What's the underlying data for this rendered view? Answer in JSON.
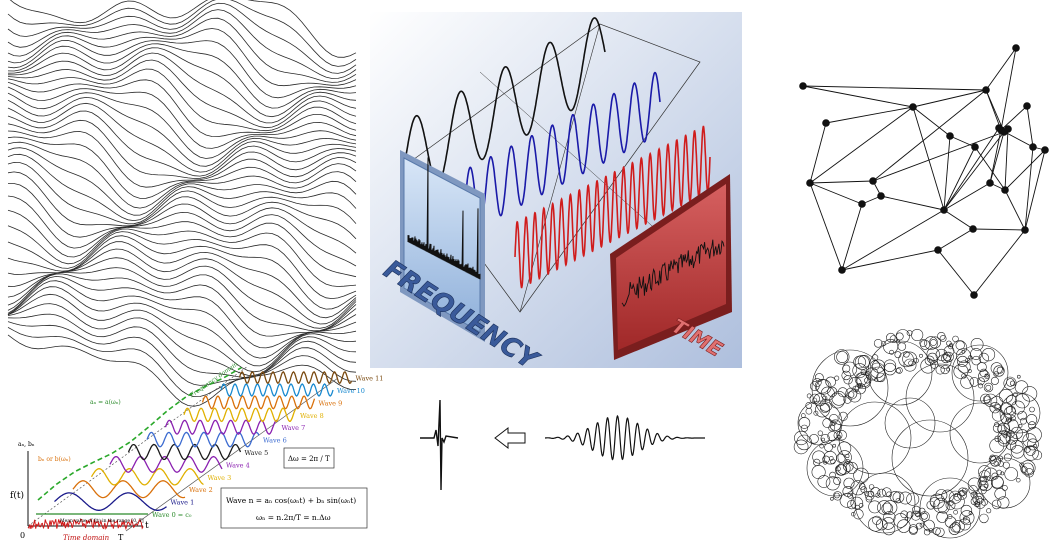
{
  "collage": {
    "ft": {
      "wave_labels": [
        "Wave 0 = c₀",
        "Wave 1",
        "Wave 2",
        "Wave 3",
        "Wave 4",
        "Wave 5",
        "Wave 6",
        "Wave 7",
        "Wave 8",
        "Wave 9",
        "Wave 10",
        "Wave 11"
      ],
      "wave_colors": [
        "#2a8a2a",
        "#1a1a8a",
        "#d9700a",
        "#e0b000",
        "#8a20b0",
        "#1a1a1a",
        "#3a6ad0",
        "#8a20b0",
        "#e0b000",
        "#d9700a",
        "#1a8ad0",
        "#7a4a10"
      ],
      "axis_f": "f(t)",
      "axis_t": "t",
      "axis_T": "T",
      "axis_zero": "0",
      "time_domain": "Time domain",
      "freq_domain": "Frequency domain",
      "mean_note": "Mean value of f(t) in the range [0, T]",
      "corner_label": "aₙ, bₙ",
      "curve_label_a": "aₙ = a(ωₙ)",
      "curve_label_b": "bₙ or b(ωₙ)",
      "delta_omega": "Δω = 2π / T",
      "wave_formula": "Wave n = aₙ cos(ωₙt) + bₙ sin(ωₙt)",
      "omega_formula": "ωₙ = n.2π/T = n.Δω"
    },
    "center": {
      "frequency": "FREQUENCY",
      "time": "TIME"
    }
  }
}
